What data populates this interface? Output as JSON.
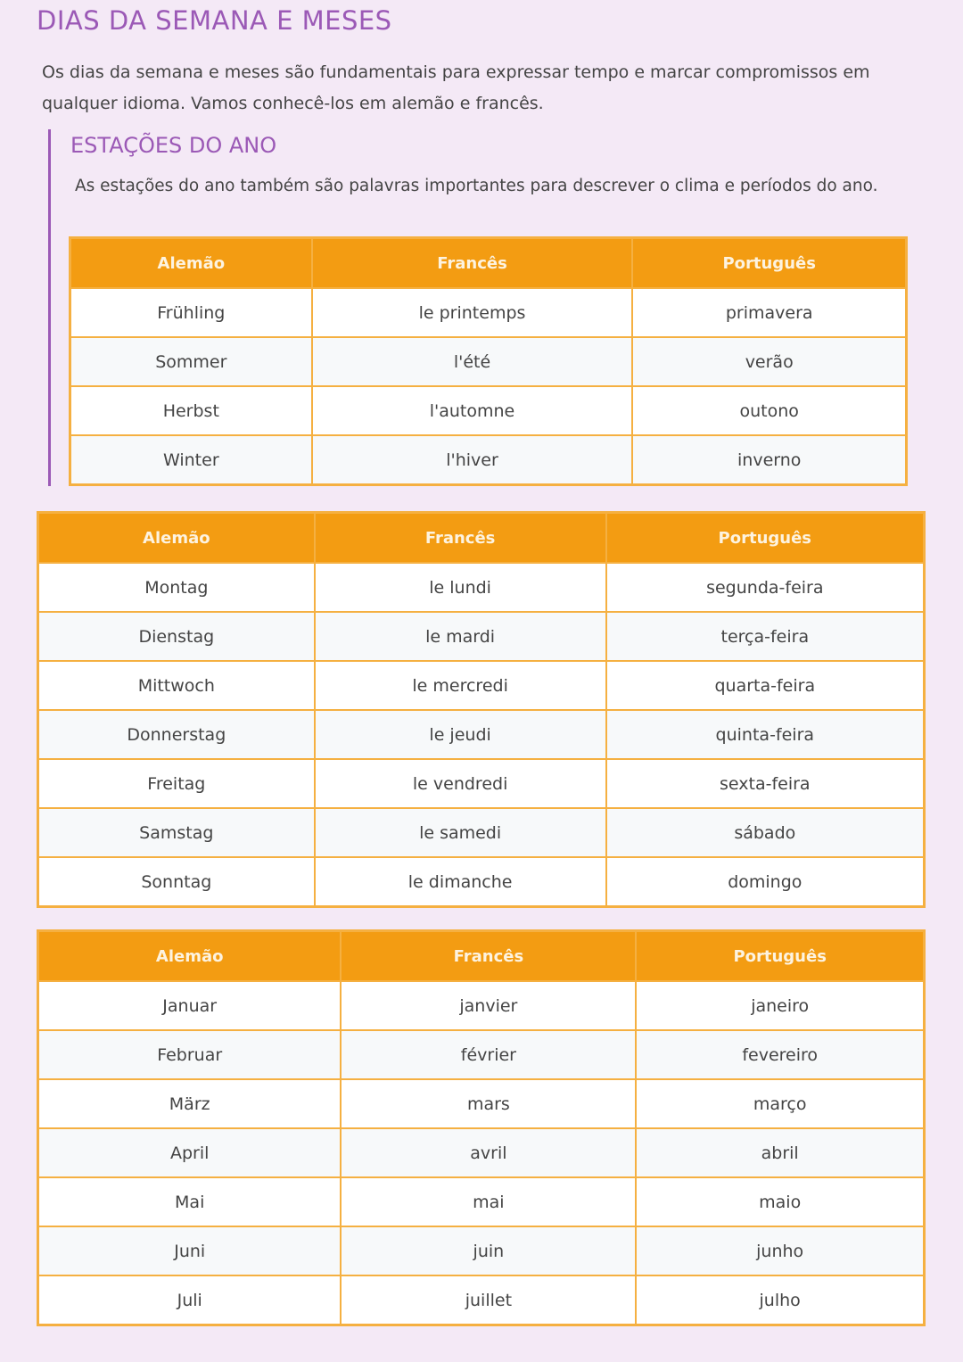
{
  "title": "DIAS DA SEMANA E MESES",
  "intro": "Os dias da semana e meses são fundamentais para expressar tempo e marcar compromissos em qualquer idioma. Vamos conhecê-los em alemão e francês.",
  "seasons": {
    "heading": "ESTAÇÕES DO ANO",
    "text": "As estações do ano também são palavras importantes para descrever o clima e períodos do ano.",
    "headers": [
      "Alemão",
      "Francês",
      "Português"
    ],
    "rows": [
      [
        "Frühling",
        "le printemps",
        "primavera"
      ],
      [
        "Sommer",
        "l'été",
        "verão"
      ],
      [
        "Herbst",
        "l'automne",
        "outono"
      ],
      [
        "Winter",
        "l'hiver",
        "inverno"
      ]
    ]
  },
  "days": {
    "headers": [
      "Alemão",
      "Francês",
      "Português"
    ],
    "rows": [
      [
        "Montag",
        "le lundi",
        "segunda-feira"
      ],
      [
        "Dienstag",
        "le mardi",
        "terça-feira"
      ],
      [
        "Mittwoch",
        "le mercredi",
        "quarta-feira"
      ],
      [
        "Donnerstag",
        "le jeudi",
        "quinta-feira"
      ],
      [
        "Freitag",
        "le vendredi",
        "sexta-feira"
      ],
      [
        "Samstag",
        "le samedi",
        "sábado"
      ],
      [
        "Sonntag",
        "le dimanche",
        "domingo"
      ]
    ]
  },
  "months": {
    "headers": [
      "Alemão",
      "Francês",
      "Português"
    ],
    "rows": [
      [
        "Januar",
        "janvier",
        "janeiro"
      ],
      [
        "Februar",
        "février",
        "fevereiro"
      ],
      [
        "März",
        "mars",
        "março"
      ],
      [
        "April",
        "avril",
        "abril"
      ],
      [
        "Mai",
        "mai",
        "maio"
      ],
      [
        "Juni",
        "juin",
        "junho"
      ],
      [
        "Juli",
        "juillet",
        "julho"
      ]
    ]
  }
}
